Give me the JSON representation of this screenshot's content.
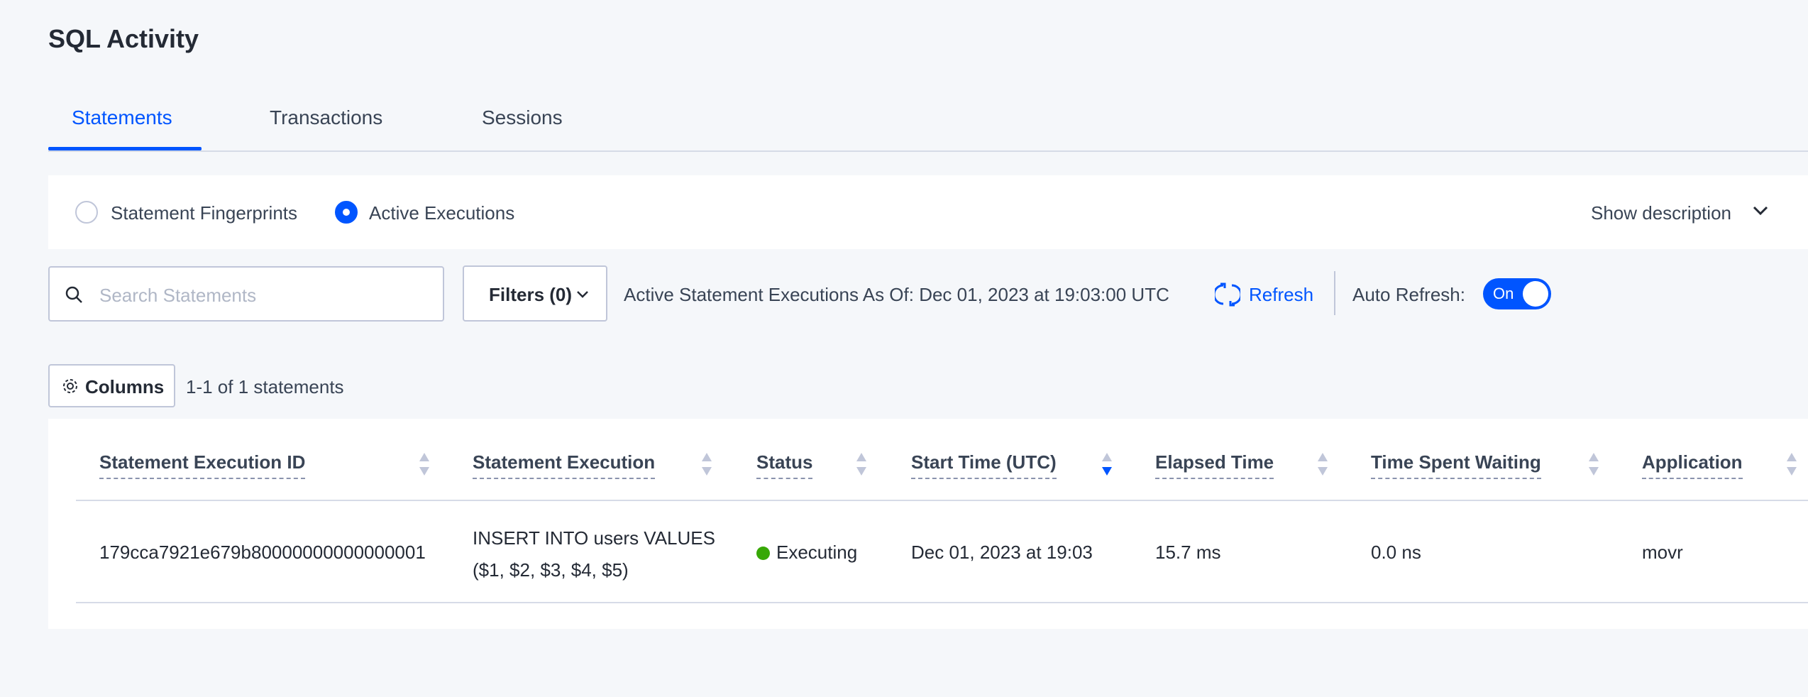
{
  "page": {
    "title": "SQL Activity"
  },
  "tabs": [
    {
      "label": "Statements",
      "active": true
    },
    {
      "label": "Transactions"
    },
    {
      "label": "Sessions"
    }
  ],
  "view_toggle": {
    "options": [
      "Statement Fingerprints",
      "Active Executions"
    ],
    "selected": "Active Executions",
    "show_description": "Show description"
  },
  "toolbar": {
    "search_placeholder": "Search Statements",
    "filters_label": "Filters (0)",
    "as_of_text": "Active Statement Executions As Of: Dec 01, 2023 at 19:03:00 UTC",
    "refresh_label": "Refresh",
    "auto_refresh_label": "Auto Refresh:",
    "auto_refresh_state": "On"
  },
  "columns_bar": {
    "columns_label": "Columns",
    "count_text": "1-1 of 1 statements"
  },
  "table": {
    "headers": [
      "Statement Execution ID",
      "Statement Execution",
      "Status",
      "Start Time (UTC)",
      "Elapsed Time",
      "Time Spent Waiting",
      "Application"
    ],
    "sorted_column": "Start Time (UTC)",
    "sort_direction": "descending",
    "rows": [
      {
        "id": "179cca7921e679b80000000000000001",
        "statement_line1": "INSERT INTO users VALUES",
        "statement_line2": "($1, $2, $3, $4, $5)",
        "status": "Executing",
        "start_time": "Dec 01, 2023 at 19:03",
        "elapsed": "15.7 ms",
        "waiting": "0.0 ns",
        "application": "movr"
      }
    ]
  },
  "colors": {
    "accent": "#0055ff",
    "executing": "#37a806"
  }
}
